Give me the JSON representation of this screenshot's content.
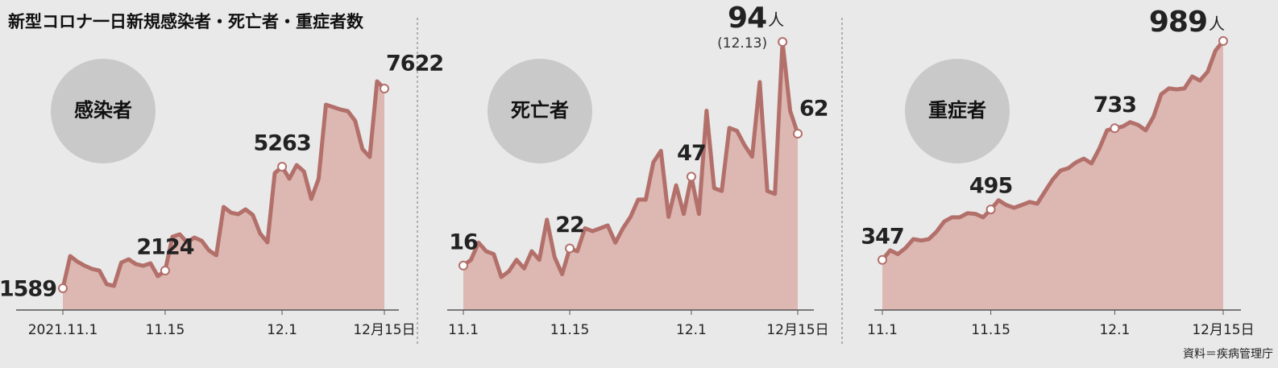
{
  "title": "新型コロナ一日新規感染者・死亡者・重症者数",
  "source": "資料＝疾病管理庁",
  "chart_data": [
    {
      "type": "area",
      "label": "感染者",
      "unit": "人",
      "color": "#b3706b",
      "fill": "#ddb7b1",
      "ylim": [
        932,
        9813
      ],
      "categories": [
        "2021.11.1",
        null,
        null,
        null,
        null,
        null,
        null,
        null,
        null,
        null,
        null,
        null,
        null,
        null,
        "11.15",
        null,
        null,
        null,
        null,
        null,
        null,
        null,
        null,
        null,
        null,
        null,
        null,
        null,
        null,
        null,
        "12.1",
        null,
        null,
        null,
        null,
        null,
        null,
        null,
        null,
        null,
        null,
        null,
        null,
        null,
        "12月15日"
      ],
      "values": [
        1589,
        2562,
        2392,
        2270,
        2173,
        2124,
        1711,
        1662,
        2368,
        2465,
        2319,
        2270,
        2343,
        1954,
        2124,
        3146,
        3219,
        2976,
        3122,
        3025,
        2733,
        2587,
        4046,
        3876,
        3827,
        3973,
        3803,
        3243,
        2976,
        5068,
        5263,
        4898,
        5312,
        5117,
        4290,
        4898,
        7137,
        7063,
        6990,
        6942,
        6650,
        5798,
        5555,
        7842,
        7622
      ],
      "value_labels": [
        "1589",
        null,
        null,
        null,
        null,
        null,
        null,
        null,
        null,
        null,
        null,
        null,
        null,
        null,
        "2124",
        null,
        null,
        null,
        null,
        null,
        null,
        null,
        null,
        null,
        null,
        null,
        null,
        null,
        null,
        null,
        "5263",
        null,
        null,
        null,
        null,
        null,
        null,
        null,
        null,
        null,
        null,
        null,
        null,
        null,
        "7622"
      ]
    },
    {
      "type": "area",
      "label": "死亡者",
      "unit": "人",
      "note": "(12.13)",
      "color": "#b3706b",
      "fill": "#ddb7b1",
      "ylim": [
        0.5,
        103
      ],
      "categories": [
        "11.1",
        null,
        null,
        null,
        null,
        null,
        null,
        null,
        null,
        null,
        null,
        null,
        null,
        null,
        "11.15",
        null,
        null,
        null,
        null,
        null,
        null,
        null,
        null,
        null,
        null,
        null,
        null,
        null,
        null,
        null,
        "12.1",
        null,
        null,
        null,
        null,
        null,
        null,
        null,
        null,
        null,
        null,
        null,
        null,
        null,
        "12月15日"
      ],
      "values": [
        16,
        18,
        24,
        21,
        20,
        12,
        14,
        18,
        15,
        21,
        18,
        32,
        19,
        13,
        22,
        21,
        29,
        28,
        29,
        30,
        24,
        29,
        33,
        39,
        39,
        52,
        56,
        33,
        44,
        34,
        47,
        34,
        70,
        43,
        42,
        64,
        63,
        58,
        54,
        80,
        42,
        41,
        94,
        70,
        62
      ],
      "value_labels": [
        "16",
        null,
        null,
        null,
        null,
        null,
        null,
        null,
        null,
        null,
        null,
        null,
        null,
        null,
        "22",
        null,
        null,
        null,
        null,
        null,
        null,
        null,
        null,
        null,
        null,
        null,
        null,
        null,
        null,
        null,
        "47",
        null,
        null,
        null,
        null,
        null,
        null,
        null,
        null,
        null,
        null,
        null,
        "94",
        null,
        "62"
      ]
    },
    {
      "type": "area",
      "label": "重症者",
      "unit": "人",
      "color": "#b3706b",
      "fill": "#ddb7b1",
      "ylim": [
        200,
        1062
      ],
      "categories": [
        "11.1",
        null,
        null,
        null,
        null,
        null,
        null,
        null,
        null,
        null,
        null,
        null,
        null,
        null,
        "11.15",
        null,
        null,
        null,
        null,
        null,
        null,
        null,
        null,
        null,
        null,
        null,
        null,
        null,
        null,
        null,
        "12.1",
        null,
        null,
        null,
        null,
        null,
        null,
        null,
        null,
        null,
        null,
        null,
        null,
        null,
        "12月15日"
      ],
      "values": [
        347,
        375,
        364,
        382,
        408,
        404,
        408,
        430,
        460,
        472,
        472,
        484,
        482,
        472,
        495,
        522,
        508,
        500,
        508,
        517,
        512,
        548,
        583,
        609,
        616,
        633,
        644,
        630,
        673,
        727,
        733,
        738,
        751,
        743,
        727,
        767,
        833,
        850,
        847,
        850,
        885,
        873,
        899,
        961,
        989
      ],
      "value_labels": [
        "347",
        null,
        null,
        null,
        null,
        null,
        null,
        null,
        null,
        null,
        null,
        null,
        null,
        null,
        "495",
        null,
        null,
        null,
        null,
        null,
        null,
        null,
        null,
        null,
        null,
        null,
        null,
        null,
        null,
        null,
        "733",
        null,
        null,
        null,
        null,
        null,
        null,
        null,
        null,
        null,
        null,
        null,
        null,
        null,
        "989"
      ]
    }
  ]
}
